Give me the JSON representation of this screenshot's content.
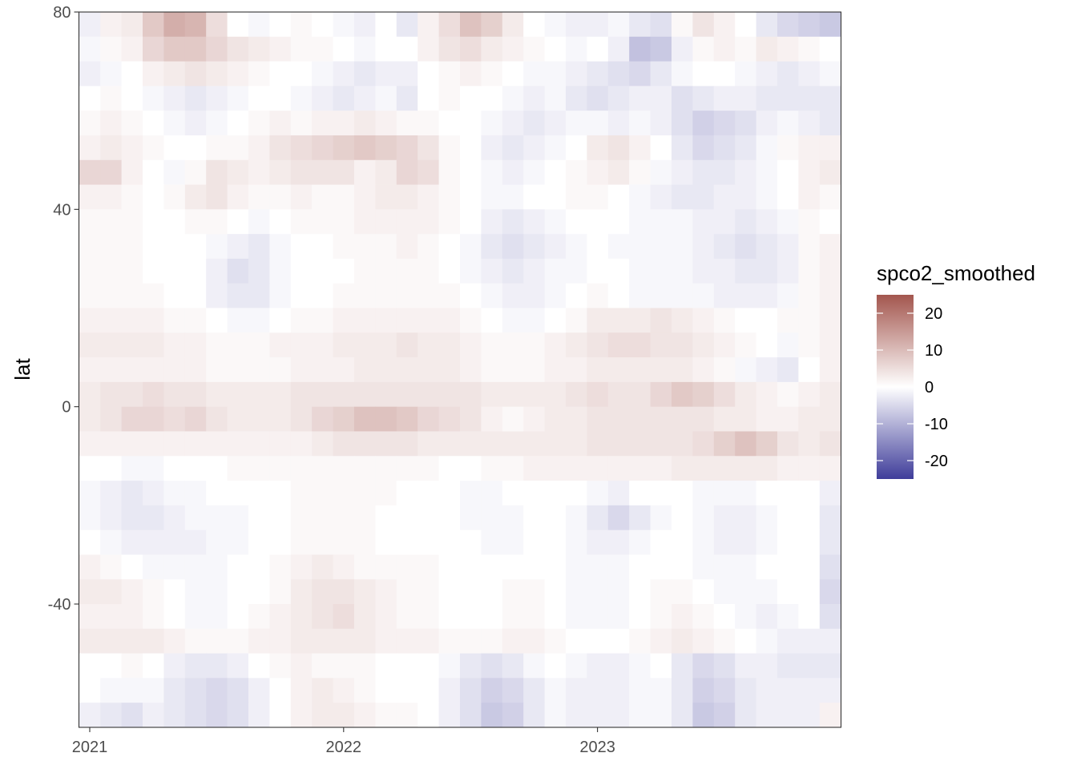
{
  "chart_data": {
    "type": "heatmap",
    "title": "",
    "xlabel": "",
    "ylabel": "lat",
    "fill_label": "spco2_smoothed",
    "x_dates": [
      "2021-01",
      "2021-02",
      "2021-03",
      "2021-04",
      "2021-05",
      "2021-06",
      "2021-07",
      "2021-08",
      "2021-09",
      "2021-10",
      "2021-11",
      "2021-12",
      "2022-01",
      "2022-02",
      "2022-03",
      "2022-04",
      "2022-05",
      "2022-06",
      "2022-07",
      "2022-08",
      "2022-09",
      "2022-10",
      "2022-11",
      "2022-12",
      "2023-01",
      "2023-02",
      "2023-03",
      "2023-04",
      "2023-05",
      "2023-06",
      "2023-07",
      "2023-08",
      "2023-09",
      "2023-10",
      "2023-11",
      "2023-12"
    ],
    "x_ticks": [
      "2021",
      "2022",
      "2023"
    ],
    "x_tick_dates": [
      "2021-01",
      "2022-01",
      "2023-01"
    ],
    "lat_bands": [
      77.5,
      72.5,
      67.5,
      62.5,
      57.5,
      52.5,
      47.5,
      42.5,
      37.5,
      32.5,
      27.5,
      22.5,
      17.5,
      12.5,
      7.5,
      2.5,
      -2.5,
      -7.5,
      -12.5,
      -17.5,
      -22.5,
      -27.5,
      -32.5,
      -37.5,
      -42.5,
      -47.5,
      -52.5,
      -57.5,
      -62.5
    ],
    "ylim": [
      -65,
      80
    ],
    "y_ticks": [
      80,
      40,
      0,
      -40
    ],
    "fill_range": [
      -25,
      25
    ],
    "legend_ticks": [
      20,
      10,
      0,
      -10,
      -20
    ],
    "legend_placement": "right",
    "grid": false,
    "colors": {
      "high": "#a3564e",
      "mid": "#ffffff",
      "low": "#3f3d9a"
    },
    "note": "cell values are approximate estimates read from the heatmap colours",
    "values": [
      [
        -2,
        2,
        3,
        8,
        12,
        11,
        5,
        0,
        -1,
        0,
        1,
        0,
        -1,
        -2,
        0,
        -3,
        2,
        5,
        9,
        7,
        3,
        0,
        -1,
        -2,
        -2,
        -1,
        -3,
        -4,
        1,
        4,
        2,
        0,
        -3,
        -5,
        -6,
        -7
      ],
      [
        -1,
        1,
        2,
        6,
        8,
        8,
        6,
        4,
        3,
        2,
        1,
        1,
        0,
        -1,
        0,
        0,
        2,
        4,
        5,
        3,
        2,
        1,
        0,
        -1,
        0,
        -2,
        -8,
        -7,
        -2,
        1,
        2,
        1,
        3,
        2,
        1,
        0
      ],
      [
        -2,
        -1,
        0,
        2,
        3,
        4,
        3,
        2,
        1,
        0,
        0,
        -1,
        -2,
        -3,
        -2,
        -2,
        0,
        1,
        2,
        1,
        0,
        -1,
        -1,
        -2,
        -3,
        -4,
        -5,
        -3,
        -1,
        0,
        0,
        -1,
        -2,
        -3,
        -2,
        -1
      ],
      [
        0,
        1,
        0,
        -1,
        -2,
        -3,
        -2,
        -1,
        0,
        0,
        -1,
        -2,
        -3,
        -2,
        -1,
        -3,
        0,
        1,
        0,
        0,
        -1,
        -2,
        -1,
        -3,
        -4,
        -3,
        -2,
        -2,
        -4,
        -3,
        -2,
        -2,
        -3,
        -3,
        -3,
        -3
      ],
      [
        1,
        2,
        1,
        0,
        -1,
        -2,
        -1,
        0,
        1,
        2,
        1,
        2,
        2,
        3,
        2,
        1,
        1,
        0,
        0,
        -1,
        -2,
        -3,
        -2,
        -1,
        -1,
        -2,
        -1,
        -2,
        -4,
        -6,
        -5,
        -4,
        -2,
        -1,
        -2,
        -3
      ],
      [
        2,
        3,
        2,
        1,
        0,
        0,
        1,
        1,
        2,
        4,
        5,
        6,
        7,
        8,
        7,
        6,
        4,
        1,
        0,
        -2,
        -3,
        -2,
        -1,
        0,
        3,
        4,
        2,
        0,
        -3,
        -5,
        -4,
        -3,
        -1,
        1,
        2,
        2
      ],
      [
        6,
        6,
        2,
        0,
        -1,
        1,
        4,
        3,
        2,
        3,
        4,
        4,
        4,
        2,
        3,
        6,
        5,
        1,
        0,
        -1,
        -2,
        -1,
        0,
        1,
        2,
        3,
        1,
        -1,
        -2,
        -3,
        -3,
        -2,
        -1,
        0,
        2,
        3
      ],
      [
        2,
        2,
        1,
        0,
        1,
        3,
        4,
        2,
        1,
        1,
        2,
        1,
        1,
        2,
        3,
        3,
        2,
        1,
        0,
        -1,
        -1,
        0,
        0,
        1,
        1,
        0,
        -1,
        -2,
        -3,
        -3,
        -2,
        -2,
        -1,
        0,
        2,
        1
      ],
      [
        1,
        1,
        1,
        0,
        0,
        1,
        1,
        0,
        -1,
        0,
        1,
        1,
        1,
        2,
        2,
        2,
        2,
        1,
        0,
        -2,
        -3,
        -2,
        -1,
        0,
        0,
        0,
        -1,
        -1,
        -1,
        -2,
        -2,
        -3,
        -2,
        -1,
        1,
        0
      ],
      [
        1,
        1,
        1,
        0,
        0,
        0,
        -1,
        -2,
        -3,
        -1,
        0,
        0,
        1,
        1,
        1,
        2,
        1,
        0,
        -1,
        -3,
        -4,
        -3,
        -2,
        -1,
        0,
        -1,
        -1,
        -1,
        -1,
        -2,
        -3,
        -4,
        -3,
        -2,
        1,
        2
      ],
      [
        1,
        1,
        1,
        0,
        0,
        0,
        -2,
        -4,
        -3,
        -1,
        0,
        0,
        0,
        1,
        1,
        1,
        1,
        0,
        -1,
        -2,
        -3,
        -2,
        -1,
        -1,
        0,
        0,
        -1,
        -1,
        -1,
        -2,
        -2,
        -3,
        -3,
        -2,
        1,
        2
      ],
      [
        1,
        1,
        1,
        1,
        0,
        0,
        -2,
        -3,
        -3,
        -1,
        0,
        0,
        1,
        1,
        1,
        1,
        1,
        1,
        0,
        -1,
        -2,
        -2,
        -1,
        0,
        1,
        0,
        -1,
        -1,
        -1,
        -1,
        -2,
        -2,
        -2,
        -1,
        1,
        2
      ],
      [
        2,
        2,
        2,
        2,
        1,
        1,
        0,
        -1,
        -1,
        0,
        1,
        1,
        2,
        2,
        2,
        2,
        2,
        2,
        1,
        0,
        -1,
        -1,
        0,
        1,
        3,
        3,
        3,
        4,
        3,
        2,
        1,
        0,
        0,
        1,
        1,
        2
      ],
      [
        3,
        3,
        3,
        3,
        2,
        2,
        1,
        1,
        1,
        2,
        2,
        2,
        3,
        3,
        3,
        4,
        3,
        3,
        2,
        1,
        1,
        1,
        2,
        3,
        4,
        5,
        5,
        4,
        4,
        3,
        2,
        1,
        0,
        -1,
        1,
        2
      ],
      [
        2,
        2,
        2,
        2,
        2,
        2,
        1,
        1,
        1,
        1,
        2,
        2,
        2,
        3,
        3,
        3,
        3,
        3,
        2,
        1,
        1,
        1,
        2,
        2,
        3,
        3,
        3,
        3,
        3,
        2,
        1,
        -1,
        -2,
        -3,
        0,
        2
      ],
      [
        3,
        4,
        4,
        5,
        4,
        4,
        3,
        3,
        3,
        3,
        4,
        4,
        4,
        4,
        4,
        4,
        4,
        4,
        4,
        3,
        3,
        3,
        3,
        4,
        5,
        4,
        4,
        6,
        8,
        7,
        5,
        3,
        2,
        1,
        2,
        3
      ],
      [
        3,
        4,
        6,
        6,
        5,
        6,
        4,
        3,
        3,
        3,
        4,
        6,
        7,
        9,
        9,
        8,
        6,
        5,
        4,
        2,
        1,
        2,
        3,
        3,
        4,
        4,
        4,
        4,
        4,
        4,
        3,
        3,
        2,
        2,
        3,
        3
      ],
      [
        2,
        2,
        2,
        2,
        2,
        2,
        2,
        2,
        2,
        2,
        2,
        3,
        4,
        4,
        4,
        4,
        3,
        3,
        3,
        3,
        3,
        3,
        3,
        3,
        4,
        4,
        4,
        4,
        4,
        5,
        7,
        9,
        7,
        4,
        3,
        4
      ],
      [
        0,
        0,
        -1,
        -1,
        0,
        0,
        0,
        1,
        1,
        1,
        1,
        1,
        1,
        1,
        1,
        1,
        1,
        0,
        0,
        1,
        1,
        2,
        2,
        2,
        2,
        2,
        2,
        2,
        3,
        3,
        3,
        3,
        3,
        2,
        2,
        2
      ],
      [
        -1,
        -2,
        -3,
        -2,
        -1,
        -1,
        0,
        0,
        0,
        0,
        1,
        1,
        1,
        1,
        1,
        0,
        0,
        0,
        -1,
        -1,
        0,
        0,
        0,
        0,
        -1,
        -2,
        0,
        0,
        0,
        -1,
        -1,
        -1,
        0,
        0,
        0,
        -2
      ],
      [
        -1,
        -2,
        -3,
        -3,
        -2,
        -1,
        -1,
        -1,
        0,
        0,
        1,
        1,
        1,
        1,
        0,
        0,
        0,
        0,
        -1,
        -1,
        -1,
        0,
        0,
        -1,
        -3,
        -5,
        -3,
        -1,
        0,
        -1,
        -2,
        -2,
        -1,
        0,
        0,
        -3
      ],
      [
        0,
        -1,
        -2,
        -2,
        -2,
        -2,
        -1,
        -1,
        0,
        0,
        1,
        1,
        1,
        1,
        0,
        0,
        0,
        0,
        0,
        -1,
        -1,
        0,
        0,
        -1,
        -2,
        -2,
        -1,
        0,
        0,
        -1,
        -2,
        -2,
        -1,
        0,
        0,
        -3
      ],
      [
        2,
        1,
        0,
        -1,
        -1,
        -1,
        -1,
        0,
        0,
        1,
        2,
        3,
        2,
        1,
        1,
        1,
        1,
        0,
        0,
        0,
        0,
        0,
        0,
        -1,
        -1,
        -1,
        0,
        0,
        0,
        -1,
        -1,
        -1,
        0,
        0,
        0,
        -4
      ],
      [
        3,
        3,
        2,
        1,
        0,
        -1,
        -1,
        0,
        0,
        1,
        3,
        4,
        4,
        3,
        2,
        1,
        1,
        0,
        0,
        0,
        1,
        1,
        0,
        -1,
        -1,
        -1,
        0,
        1,
        1,
        0,
        -1,
        -1,
        -1,
        0,
        0,
        -5
      ],
      [
        2,
        2,
        2,
        1,
        0,
        -1,
        -1,
        0,
        1,
        2,
        3,
        4,
        5,
        3,
        2,
        1,
        1,
        0,
        0,
        0,
        1,
        1,
        0,
        -1,
        -1,
        -1,
        0,
        1,
        2,
        1,
        0,
        -1,
        -2,
        -1,
        0,
        -4
      ],
      [
        3,
        3,
        3,
        3,
        2,
        1,
        1,
        1,
        2,
        2,
        3,
        3,
        3,
        3,
        2,
        2,
        2,
        1,
        1,
        1,
        2,
        2,
        1,
        0,
        0,
        0,
        1,
        2,
        3,
        2,
        1,
        0,
        -1,
        -2,
        -2,
        -2
      ],
      [
        0,
        0,
        1,
        0,
        -2,
        -3,
        -3,
        -2,
        0,
        1,
        2,
        1,
        1,
        1,
        0,
        0,
        0,
        -1,
        -3,
        -4,
        -3,
        -1,
        0,
        -1,
        -2,
        -2,
        -1,
        0,
        -3,
        -5,
        -4,
        -2,
        -2,
        -3,
        -3,
        -3
      ],
      [
        0,
        -1,
        -1,
        -1,
        -3,
        -4,
        -5,
        -4,
        -2,
        0,
        2,
        3,
        2,
        1,
        0,
        0,
        0,
        -2,
        -4,
        -6,
        -5,
        -3,
        -1,
        -2,
        -2,
        -2,
        -1,
        -1,
        -3,
        -6,
        -5,
        -3,
        -2,
        -2,
        -2,
        -2
      ],
      [
        -2,
        -3,
        -4,
        -2,
        -3,
        -4,
        -5,
        -4,
        -2,
        0,
        2,
        3,
        3,
        2,
        1,
        1,
        0,
        -2,
        -4,
        -7,
        -6,
        -3,
        -1,
        -2,
        -2,
        -2,
        -1,
        -1,
        -3,
        -7,
        -6,
        -3,
        -2,
        -2,
        -2,
        2
      ]
    ]
  }
}
